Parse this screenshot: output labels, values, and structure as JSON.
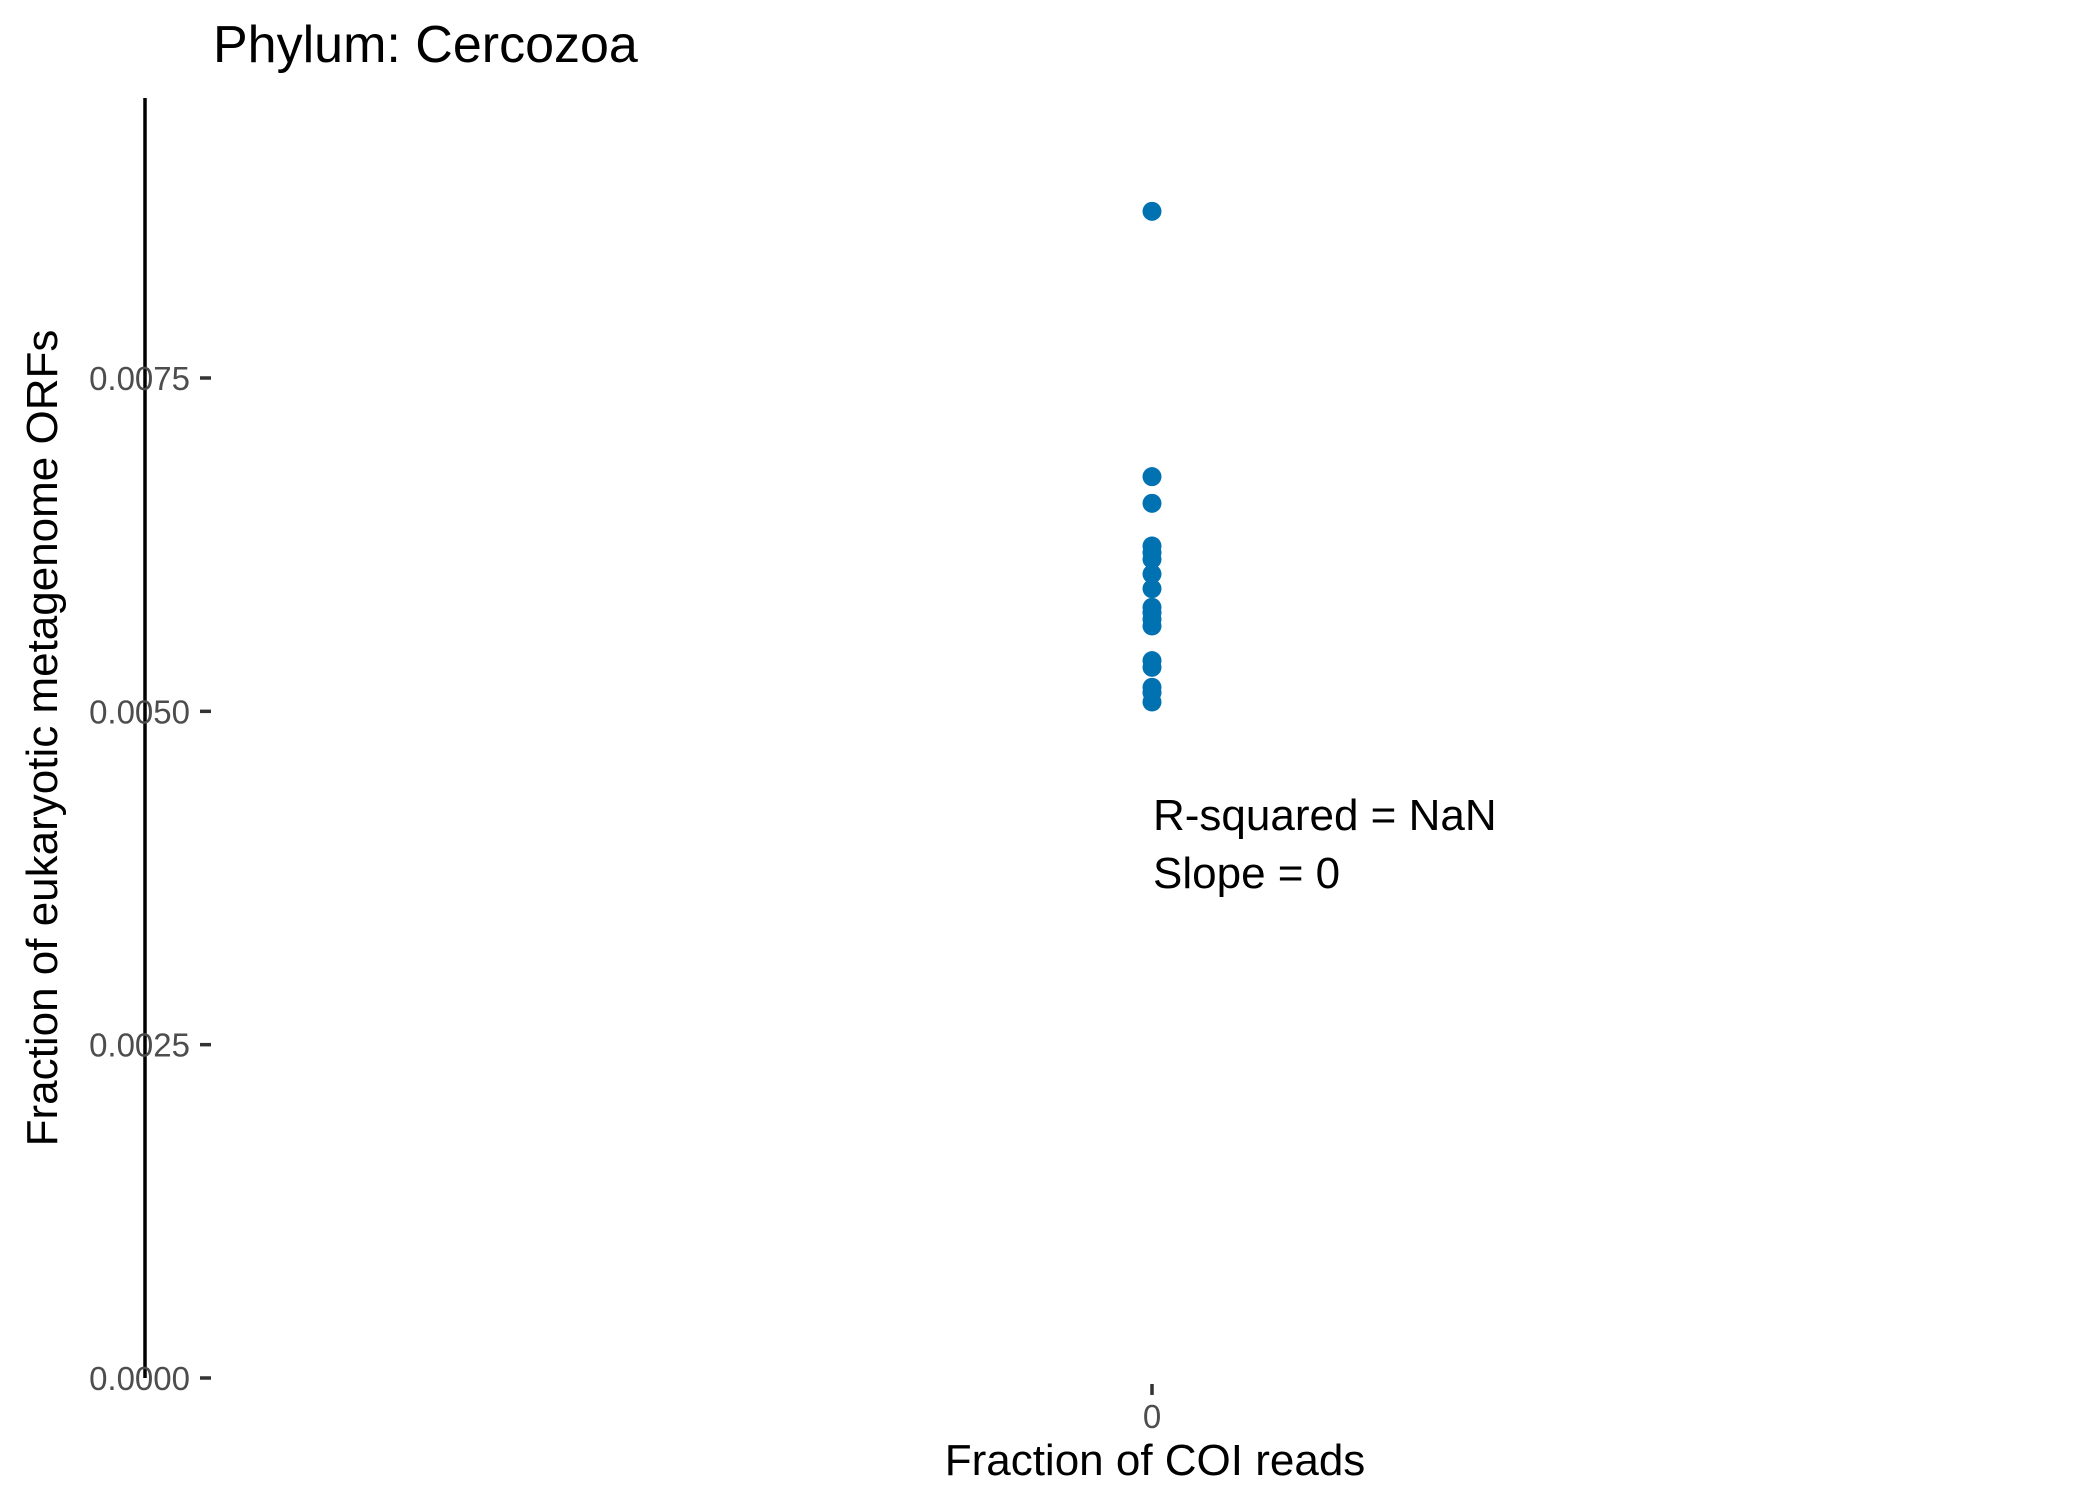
{
  "chart_data": {
    "type": "scatter",
    "title": "Phylum:  Cercozoa",
    "xlabel": "Fraction of COI reads",
    "ylabel": "Fraction of eukaryotic metagenome ORFs",
    "x_ticks": [
      {
        "value": 0,
        "label": "0"
      }
    ],
    "y_ticks": [
      {
        "value": 0.0,
        "label": "0.0000"
      },
      {
        "value": 0.0025,
        "label": "0.0025"
      },
      {
        "value": 0.005,
        "label": "0.0050"
      },
      {
        "value": 0.0075,
        "label": "0.0075"
      }
    ],
    "xlim": [
      -1,
      1
    ],
    "ylim": [
      0,
      0.0096
    ],
    "grid": false,
    "legend": "none",
    "point_color": "#0072B2",
    "series": [
      {
        "points": [
          {
            "x": 0,
            "y": 0.00875
          },
          {
            "x": 0,
            "y": 0.00676
          },
          {
            "x": 0,
            "y": 0.00656
          },
          {
            "x": 0,
            "y": 0.00624
          },
          {
            "x": 0,
            "y": 0.00619
          },
          {
            "x": 0,
            "y": 0.00614
          },
          {
            "x": 0,
            "y": 0.00603
          },
          {
            "x": 0,
            "y": 0.00592
          },
          {
            "x": 0,
            "y": 0.00578
          },
          {
            "x": 0,
            "y": 0.00574
          },
          {
            "x": 0,
            "y": 0.00569
          },
          {
            "x": 0,
            "y": 0.00564
          },
          {
            "x": 0,
            "y": 0.00538
          },
          {
            "x": 0,
            "y": 0.00533
          },
          {
            "x": 0,
            "y": 0.00518
          },
          {
            "x": 0,
            "y": 0.00514
          },
          {
            "x": 0,
            "y": 0.00507
          }
        ]
      }
    ],
    "annotations": [
      "R-squared =  NaN",
      "Slope =  0"
    ]
  }
}
